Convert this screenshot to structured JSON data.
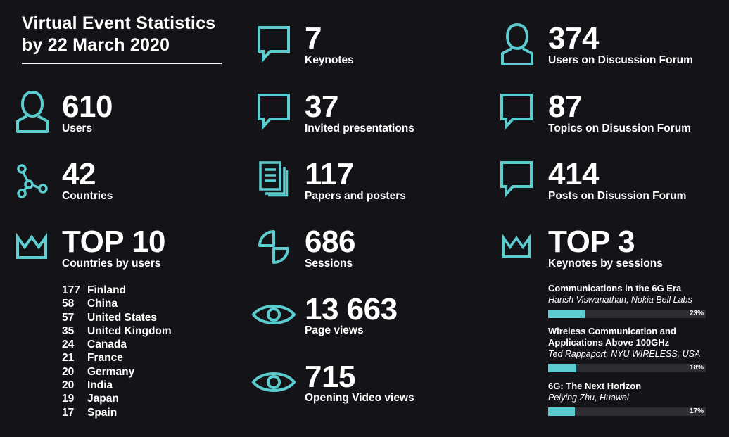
{
  "title_line1": "Virtual Event Statistics",
  "title_line2": "by 22 March 2020",
  "accent_color": "#5bcdd0",
  "background_color": "#141418",
  "stats": {
    "users": {
      "value": "610",
      "label": "Users",
      "icon": "user-icon"
    },
    "countries": {
      "value": "42",
      "label": "Countries",
      "icon": "network-icon"
    },
    "top10": {
      "value": "TOP 10",
      "label": "Countries by users",
      "icon": "crown-icon"
    },
    "keynotes": {
      "value": "7",
      "label": "Keynotes",
      "icon": "speech-bubble-icon"
    },
    "invited": {
      "value": "37",
      "label": "Invited presentations",
      "icon": "speech-bubble-icon"
    },
    "papers": {
      "value": "117",
      "label": "Papers and posters",
      "icon": "documents-icon"
    },
    "sessions": {
      "value": "686",
      "label": "Sessions",
      "icon": "sessions-icon"
    },
    "pageviews": {
      "value": "13 663",
      "label": "Page views",
      "icon": "eye-icon"
    },
    "videoviews": {
      "value": "715",
      "label": "Opening Video views",
      "icon": "eye-icon"
    },
    "forum_users": {
      "value": "374",
      "label": "Users on Discussion Forum",
      "icon": "user-icon"
    },
    "topics": {
      "value": "87",
      "label": "Topics on Disussion Forum",
      "icon": "speech-bubble-icon"
    },
    "posts": {
      "value": "414",
      "label": "Posts on Disussion Forum",
      "icon": "speech-bubble-icon"
    },
    "top3": {
      "value": "TOP 3",
      "label": "Keynotes by sessions",
      "icon": "crown-icon"
    }
  },
  "top_countries": [
    {
      "count": "177",
      "country": "Finland"
    },
    {
      "count": "58",
      "country": "China"
    },
    {
      "count": "57",
      "country": "United States"
    },
    {
      "count": "35",
      "country": "United Kingdom"
    },
    {
      "count": "24",
      "country": "Canada"
    },
    {
      "count": "21",
      "country": "France"
    },
    {
      "count": "20",
      "country": "Germany"
    },
    {
      "count": "20",
      "country": "India"
    },
    {
      "count": "19",
      "country": "Japan"
    },
    {
      "count": "17",
      "country": "Spain"
    }
  ],
  "top_keynotes": [
    {
      "title": "Communications in the 6G Era",
      "author": "Harish Viswanathan, Nokia Bell Labs",
      "percent": 23,
      "percent_label": "23%"
    },
    {
      "title": "Wireless Communication and Applications Above 100GHz",
      "author": "Ted Rappaport, NYU WIRELESS, USA",
      "percent": 18,
      "percent_label": "18%"
    },
    {
      "title": "6G: The Next Horizon",
      "author": "Peiying Zhu, Huawei",
      "percent": 17,
      "percent_label": "17%"
    }
  ]
}
